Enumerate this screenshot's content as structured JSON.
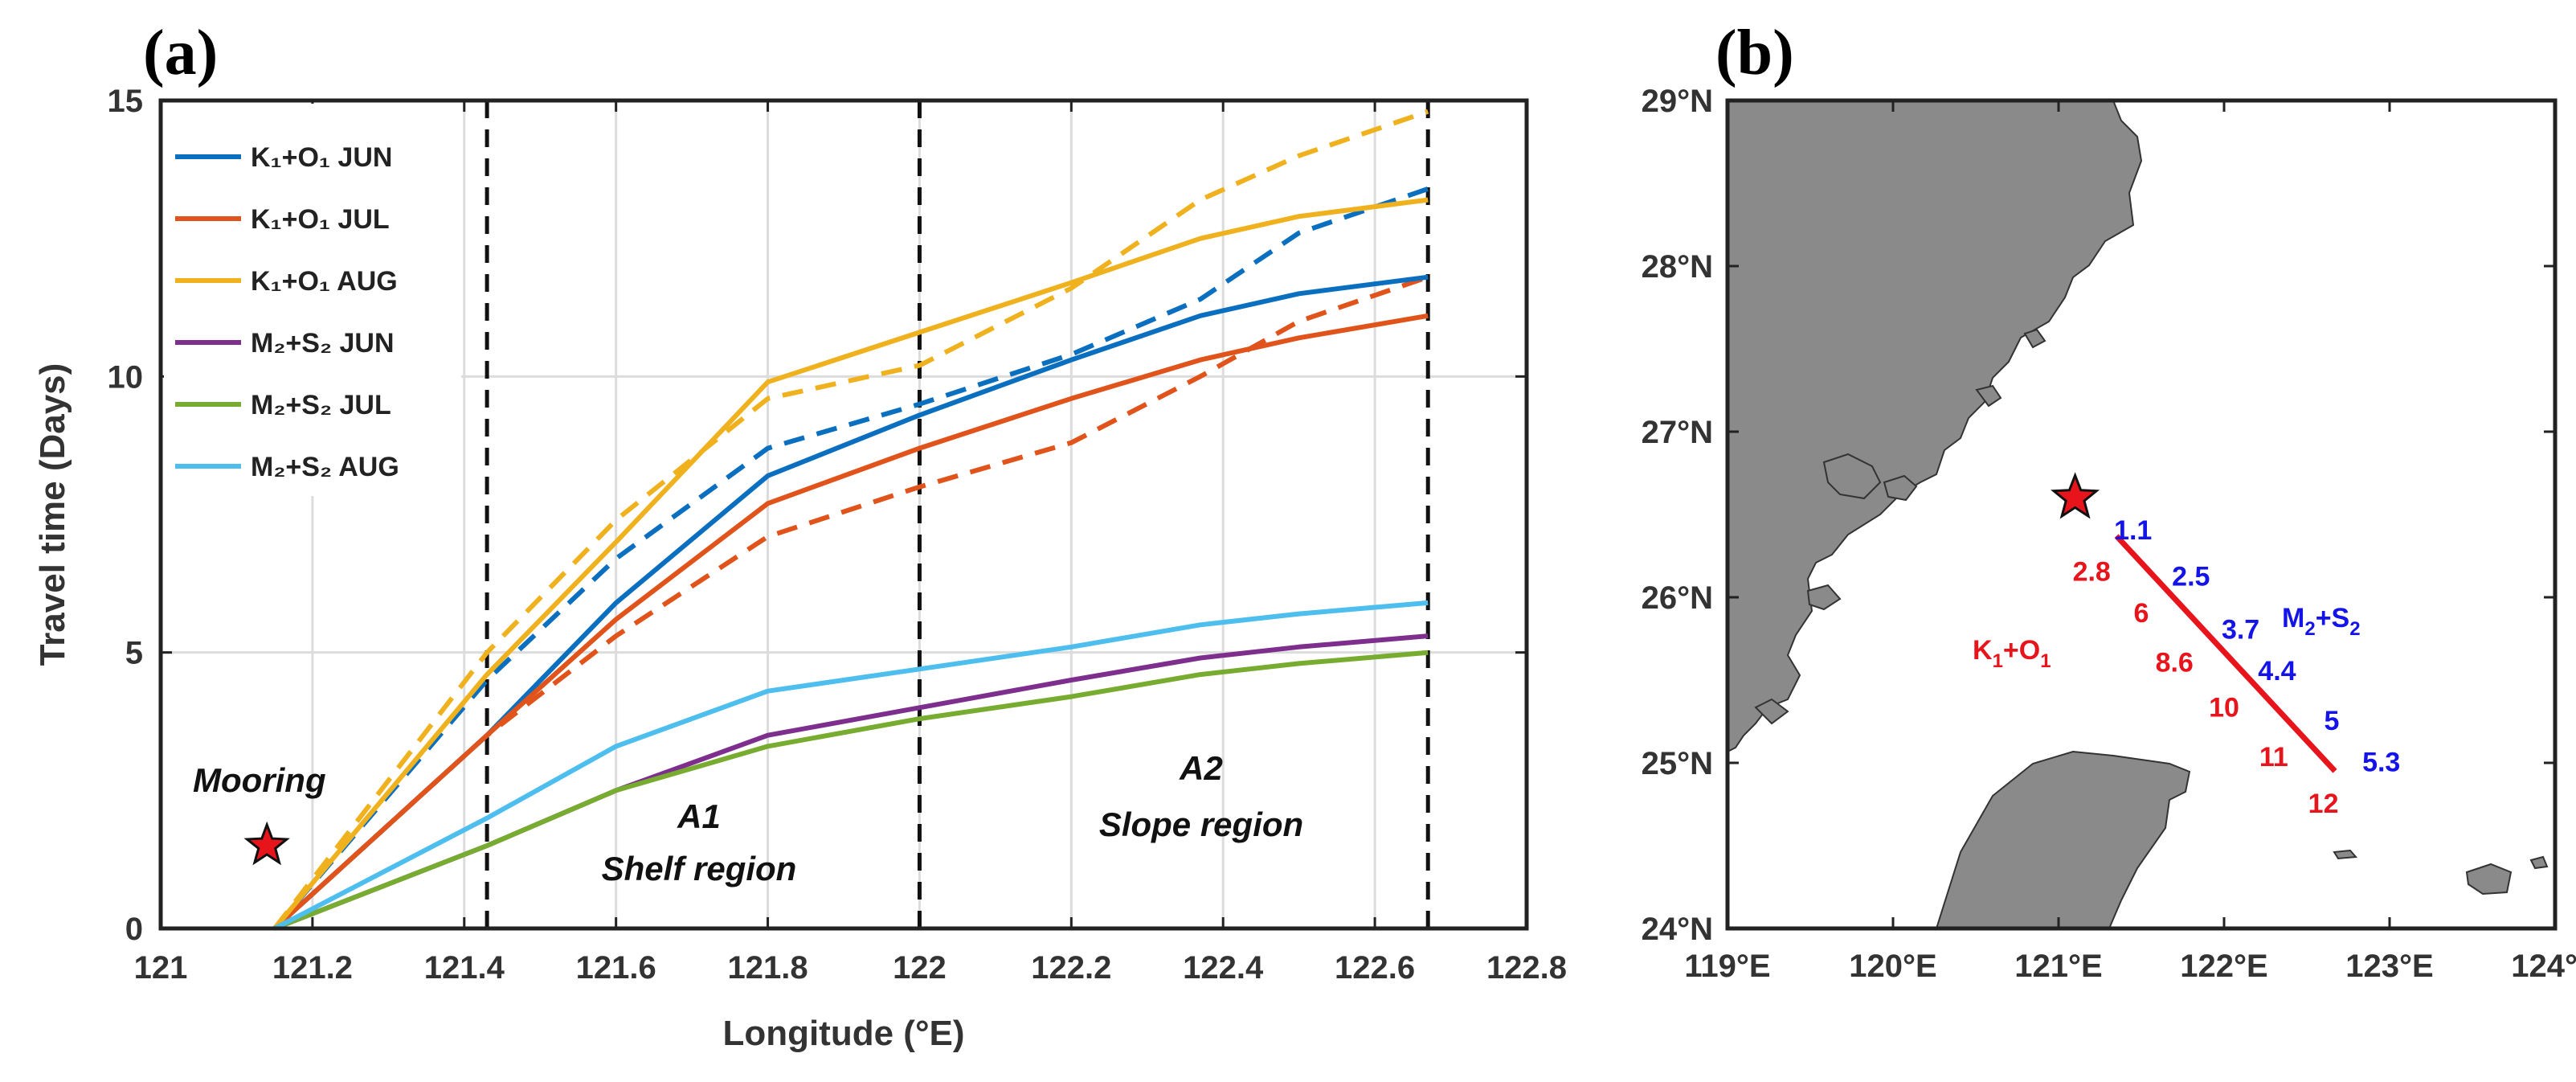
{
  "panel_labels": {
    "a": "(a)",
    "b": "(b)"
  },
  "chart_data": [
    {
      "type": "line",
      "panel": "(a)",
      "xlabel": "Longitude (°E)",
      "ylabel": "Travel time (Days)",
      "xlim": [
        121,
        122.8
      ],
      "ylim": [
        0,
        15
      ],
      "xticks": [
        "121",
        "121.2",
        "121.4",
        "121.6",
        "121.8",
        "122",
        "122.2",
        "122.4",
        "122.6",
        "122.8"
      ],
      "yticks": [
        "0",
        "5",
        "10",
        "15"
      ],
      "grid": true,
      "legend_position": "top-left",
      "vlines": [
        121.43,
        122.0,
        122.67
      ],
      "x": [
        121.15,
        121.43,
        121.6,
        121.8,
        122.0,
        122.2,
        122.37,
        122.5,
        122.67
      ],
      "series": [
        {
          "name": "K₁+O₁ JUN",
          "color": "#0a6fbf",
          "style": "solid",
          "values": [
            0,
            3.5,
            5.9,
            8.2,
            9.3,
            10.3,
            11.1,
            11.5,
            11.8
          ]
        },
        {
          "name": "K₁+O₁ JUL",
          "color": "#e0541c",
          "style": "solid",
          "values": [
            0,
            3.5,
            5.6,
            7.7,
            8.7,
            9.6,
            10.3,
            10.7,
            11.1
          ]
        },
        {
          "name": "K₁+O₁ AUG",
          "color": "#efb21e",
          "style": "solid",
          "values": [
            0,
            4.6,
            7.0,
            9.9,
            10.8,
            11.7,
            12.5,
            12.9,
            13.2
          ]
        },
        {
          "name": "M₂+S₂ JUN",
          "color": "#7e2f8e",
          "style": "solid",
          "values": [
            0,
            1.5,
            2.5,
            3.5,
            4.0,
            4.5,
            4.9,
            5.1,
            5.3
          ]
        },
        {
          "name": "M₂+S₂ JUL",
          "color": "#77ac30",
          "style": "solid",
          "values": [
            0,
            1.5,
            2.5,
            3.3,
            3.8,
            4.2,
            4.6,
            4.8,
            5.0
          ]
        },
        {
          "name": "M₂+S₂ AUG",
          "color": "#4dbeee",
          "style": "solid",
          "values": [
            0,
            2.0,
            3.3,
            4.3,
            4.7,
            5.1,
            5.5,
            5.7,
            5.9
          ]
        },
        {
          "name": "",
          "color": "#0a6fbf",
          "style": "dashed",
          "values": [
            0,
            4.5,
            6.7,
            8.7,
            9.5,
            10.4,
            11.4,
            12.6,
            13.4
          ]
        },
        {
          "name": "",
          "color": "#e0541c",
          "style": "dashed",
          "values": [
            0,
            3.5,
            5.3,
            7.1,
            8.0,
            8.8,
            10.0,
            11.0,
            11.8
          ]
        },
        {
          "name": "",
          "color": "#efb21e",
          "style": "dashed",
          "values": [
            0,
            5.0,
            7.4,
            9.6,
            10.2,
            11.6,
            13.2,
            14.0,
            14.8
          ]
        }
      ],
      "annotations": {
        "mooring": "Mooring",
        "mooring_point": {
          "x": 121.14,
          "y": 1.5
        },
        "a1": "A1",
        "a1_sub": "Shelf region",
        "a2": "A2",
        "a2_sub": "Slope region"
      }
    },
    {
      "type": "map",
      "panel": "(b)",
      "xlim": [
        119,
        124
      ],
      "ylim": [
        24,
        29
      ],
      "xticks": [
        "119°E",
        "120°E",
        "121°E",
        "122°E",
        "123°E",
        "124°E"
      ],
      "yticks": [
        "24°N",
        "25°N",
        "26°N",
        "27°N",
        "28°N",
        "29°N"
      ],
      "mooring_point": {
        "lon": 121.1,
        "lat": 26.6
      },
      "transect": {
        "start": {
          "lon": 121.35,
          "lat": 26.37
        },
        "end": {
          "lon": 122.67,
          "lat": 24.95
        },
        "color": "#e8141c"
      },
      "labels_k1o1": {
        "name": "K₁+O₁",
        "values": [
          {
            "text": "2.8",
            "lon": 121.2,
            "lat": 26.1
          },
          {
            "text": "6",
            "lon": 121.5,
            "lat": 25.85
          },
          {
            "text": "8.6",
            "lon": 121.7,
            "lat": 25.55
          },
          {
            "text": "10",
            "lon": 122.0,
            "lat": 25.28
          },
          {
            "text": "11",
            "lon": 122.3,
            "lat": 24.98
          },
          {
            "text": "12",
            "lon": 122.6,
            "lat": 24.7
          }
        ]
      },
      "labels_m2s2": {
        "name": "M₂+S₂",
        "values": [
          {
            "text": "1.1",
            "lon": 121.45,
            "lat": 26.35
          },
          {
            "text": "2.5",
            "lon": 121.8,
            "lat": 26.07
          },
          {
            "text": "3.7",
            "lon": 122.1,
            "lat": 25.75
          },
          {
            "text": "4.4",
            "lon": 122.32,
            "lat": 25.5
          },
          {
            "text": "5",
            "lon": 122.65,
            "lat": 25.2
          },
          {
            "text": "5.3",
            "lon": 122.95,
            "lat": 24.95
          }
        ]
      }
    }
  ]
}
